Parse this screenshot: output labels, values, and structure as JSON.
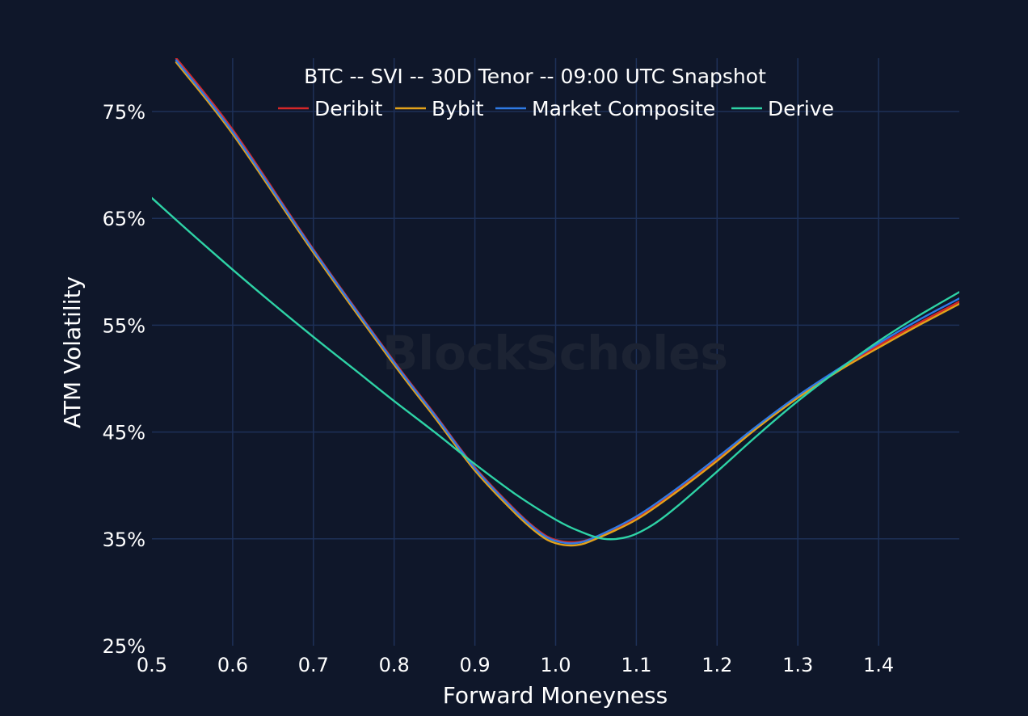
{
  "watermark": "BlockScholes",
  "colors": {
    "background": "#0f172a",
    "grid": "#1e3158",
    "text": "#ffffff"
  },
  "chart_data": {
    "type": "line",
    "title": "BTC -- SVI -- 30D Tenor -- 09:00 UTC Snapshot",
    "xlabel": "Forward Moneyness",
    "ylabel": "ATM Volatility",
    "xlim": [
      0.5,
      1.5
    ],
    "ylim": [
      25,
      78
    ],
    "x_ticks": [
      0.5,
      0.6,
      0.7,
      0.8,
      0.9,
      1.0,
      1.1,
      1.2,
      1.3,
      1.4
    ],
    "x_tick_labels": [
      "0.5",
      "0.6",
      "0.7",
      "0.8",
      "0.9",
      "1.0",
      "1.1",
      "1.2",
      "1.3",
      "1.4"
    ],
    "y_ticks": [
      25,
      35,
      45,
      55,
      65,
      75
    ],
    "y_tick_labels": [
      "25%",
      "35%",
      "45%",
      "55%",
      "65%",
      "75%"
    ],
    "grid": true,
    "legend_position": "top-center",
    "series": [
      {
        "name": "Deribit",
        "color": "#d62728",
        "points": [
          [
            0.53,
            80.0
          ],
          [
            0.6,
            73.3
          ],
          [
            0.7,
            62.1
          ],
          [
            0.8,
            51.6
          ],
          [
            0.85,
            46.7
          ],
          [
            0.9,
            41.7
          ],
          [
            0.95,
            37.7
          ],
          [
            0.98,
            35.7
          ],
          [
            1.0,
            34.9
          ],
          [
            1.025,
            34.7
          ],
          [
            1.05,
            35.2
          ],
          [
            1.1,
            37.0
          ],
          [
            1.15,
            39.6
          ],
          [
            1.2,
            42.5
          ],
          [
            1.25,
            45.5
          ],
          [
            1.3,
            48.3
          ],
          [
            1.35,
            50.8
          ],
          [
            1.4,
            53.1
          ],
          [
            1.45,
            55.2
          ],
          [
            1.5,
            57.2
          ]
        ]
      },
      {
        "name": "Bybit",
        "color": "#e3a21a",
        "points": [
          [
            0.53,
            79.6
          ],
          [
            0.6,
            72.9
          ],
          [
            0.7,
            61.8
          ],
          [
            0.8,
            51.3
          ],
          [
            0.85,
            46.4
          ],
          [
            0.9,
            41.4
          ],
          [
            0.95,
            37.4
          ],
          [
            0.98,
            35.4
          ],
          [
            1.0,
            34.6
          ],
          [
            1.025,
            34.4
          ],
          [
            1.05,
            35.0
          ],
          [
            1.1,
            36.8
          ],
          [
            1.15,
            39.4
          ],
          [
            1.2,
            42.3
          ],
          [
            1.25,
            45.4
          ],
          [
            1.3,
            48.2
          ],
          [
            1.35,
            50.7
          ],
          [
            1.4,
            52.9
          ],
          [
            1.45,
            55.0
          ],
          [
            1.5,
            57.0
          ]
        ]
      },
      {
        "name": "Market Composite",
        "color": "#2f7ae5",
        "points": [
          [
            0.53,
            79.8
          ],
          [
            0.6,
            73.1
          ],
          [
            0.7,
            62.0
          ],
          [
            0.8,
            51.5
          ],
          [
            0.85,
            46.6
          ],
          [
            0.9,
            41.6
          ],
          [
            0.95,
            37.6
          ],
          [
            0.98,
            35.6
          ],
          [
            1.0,
            34.8
          ],
          [
            1.025,
            34.6
          ],
          [
            1.05,
            35.2
          ],
          [
            1.1,
            37.1
          ],
          [
            1.15,
            39.7
          ],
          [
            1.2,
            42.6
          ],
          [
            1.25,
            45.6
          ],
          [
            1.3,
            48.4
          ],
          [
            1.35,
            50.9
          ],
          [
            1.4,
            53.3
          ],
          [
            1.45,
            55.5
          ],
          [
            1.5,
            57.5
          ]
        ]
      },
      {
        "name": "Derive",
        "color": "#2ed3a6",
        "points": [
          [
            0.5,
            66.9
          ],
          [
            0.55,
            63.5
          ],
          [
            0.6,
            60.2
          ],
          [
            0.65,
            57.0
          ],
          [
            0.7,
            53.9
          ],
          [
            0.75,
            50.9
          ],
          [
            0.8,
            47.9
          ],
          [
            0.85,
            45.0
          ],
          [
            0.9,
            42.0
          ],
          [
            0.95,
            39.2
          ],
          [
            1.0,
            36.8
          ],
          [
            1.03,
            35.7
          ],
          [
            1.06,
            35.0
          ],
          [
            1.09,
            35.2
          ],
          [
            1.12,
            36.3
          ],
          [
            1.15,
            38.0
          ],
          [
            1.2,
            41.3
          ],
          [
            1.25,
            44.7
          ],
          [
            1.3,
            47.9
          ],
          [
            1.35,
            50.8
          ],
          [
            1.4,
            53.5
          ],
          [
            1.45,
            55.9
          ],
          [
            1.5,
            58.1
          ]
        ]
      }
    ]
  }
}
